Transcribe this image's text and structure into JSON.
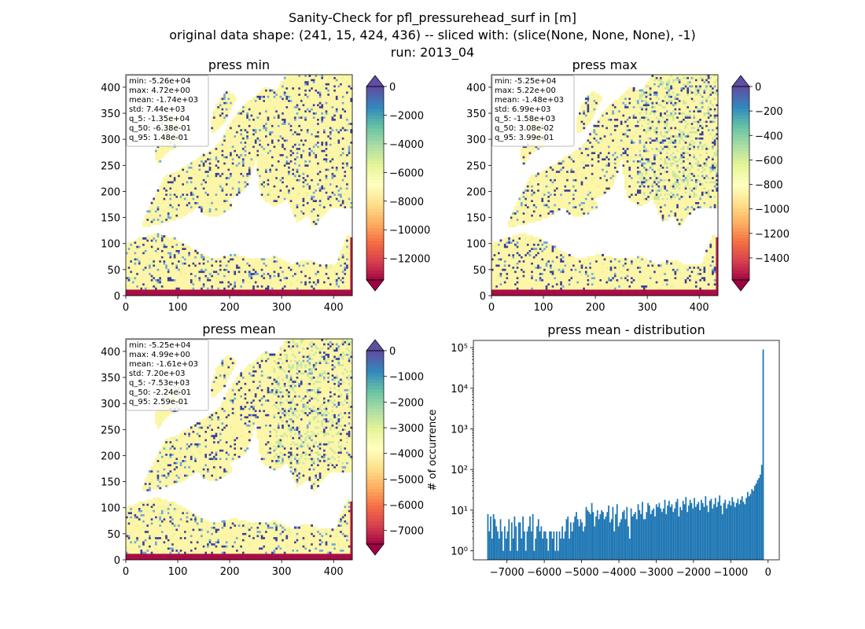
{
  "figure": {
    "title_lines": [
      "Sanity-Check for pfl_pressurehead_surf in [m]",
      "original data shape: (241, 15, 424, 436) -- sliced with: (slice(None, None, None), -1)",
      "run: 2013_04"
    ]
  },
  "colors": {
    "cmap": [
      "#9e0142",
      "#d53e4f",
      "#f46d43",
      "#fdae61",
      "#fee08b",
      "#ffffbf",
      "#e6f598",
      "#abdda4",
      "#66c2a5",
      "#3288bd",
      "#5e4fa2"
    ],
    "over": "#5e4fa2",
    "under": "#9e0142",
    "hist_bar": "#1f77b4",
    "stats_box_edge": "#bbbbbb"
  },
  "chart_data": [
    {
      "type": "heatmap",
      "title": "press min",
      "xlim": [
        0,
        436
      ],
      "ylim": [
        0,
        424
      ],
      "x_ticks": [
        0,
        100,
        200,
        300,
        400
      ],
      "y_ticks": [
        0,
        50,
        100,
        150,
        200,
        250,
        300,
        350,
        400
      ],
      "stats": [
        "min: -5.26e+04",
        "max: 4.72e+00",
        "mean: -1.74e+03",
        "std: 7.44e+03",
        "q_5: -1.35e+04",
        "q_50: -6.38e-01",
        "q_95: 1.48e-01"
      ],
      "colorbar": {
        "vmin": -13500,
        "vmax": 0,
        "extend": "both",
        "ticks": [
          0,
          -2000,
          -4000,
          -6000,
          -8000,
          -10000,
          -12000
        ],
        "tick_labels": [
          "0",
          "−2000",
          "−4000",
          "−6000",
          "−8000",
          "−10000",
          "−12000"
        ]
      }
    },
    {
      "type": "heatmap",
      "title": "press max",
      "xlim": [
        0,
        436
      ],
      "ylim": [
        0,
        424
      ],
      "x_ticks": [
        0,
        100,
        200,
        300,
        400
      ],
      "y_ticks": [
        0,
        50,
        100,
        150,
        200,
        250,
        300,
        350,
        400
      ],
      "stats": [
        "min: -5.25e+04",
        "max: 5.22e+00",
        "mean: -1.48e+03",
        "std: 6.99e+03",
        "q_5: -1.58e+03",
        "q_50: 3.08e-02",
        "q_95: 3.99e-01"
      ],
      "colorbar": {
        "vmin": -1580,
        "vmax": 0,
        "extend": "both",
        "ticks": [
          0,
          -200,
          -400,
          -600,
          -800,
          -1000,
          -1200,
          -1400
        ],
        "tick_labels": [
          "0",
          "−200",
          "−400",
          "−600",
          "−800",
          "−1000",
          "−1200",
          "−1400"
        ]
      }
    },
    {
      "type": "heatmap",
      "title": "press mean",
      "xlim": [
        0,
        436
      ],
      "ylim": [
        0,
        424
      ],
      "x_ticks": [
        0,
        100,
        200,
        300,
        400
      ],
      "y_ticks": [
        0,
        50,
        100,
        150,
        200,
        250,
        300,
        350,
        400
      ],
      "stats": [
        "min: -5.25e+04",
        "max: 4.99e+00",
        "mean: -1.61e+03",
        "std: 7.20e+03",
        "q_5: -7.53e+03",
        "q_50: -2.24e-01",
        "q_95: 2.59e-01"
      ],
      "colorbar": {
        "vmin": -7530,
        "vmax": 0,
        "extend": "both",
        "ticks": [
          0,
          -1000,
          -2000,
          -3000,
          -4000,
          -5000,
          -6000,
          -7000
        ],
        "tick_labels": [
          "0",
          "−1000",
          "−2000",
          "−3000",
          "−4000",
          "−5000",
          "−6000",
          "−7000"
        ]
      }
    },
    {
      "type": "bar",
      "title": "press mean - distribution",
      "ylabel": "# of occurrence",
      "yscale": "log",
      "xlim": [
        -7900,
        300
      ],
      "ylim": [
        0.6,
        150000
      ],
      "x_ticks": [
        -7000,
        -6000,
        -5000,
        -4000,
        -3000,
        -2000,
        -1000,
        0
      ],
      "x_tick_labels": [
        "−7000",
        "−6000",
        "−5000",
        "−4000",
        "−3000",
        "−2000",
        "−1000",
        "0"
      ],
      "y_ticks": [
        1,
        10,
        100,
        1000,
        10000,
        100000
      ],
      "y_tick_labels": [
        "10⁰",
        "10¹",
        "10²",
        "10³",
        "10⁴",
        "10⁵"
      ],
      "bin_start": -7530,
      "bin_width": 37.65,
      "counts": [
        8,
        3,
        7,
        2,
        8,
        6,
        4,
        3,
        2,
        6,
        3,
        1,
        4,
        2,
        3,
        6,
        1,
        5,
        2,
        7,
        4,
        1,
        5,
        5,
        2,
        7,
        3,
        1,
        3,
        4,
        7,
        3,
        8,
        1,
        2,
        4,
        6,
        3,
        4,
        2,
        3,
        3,
        2,
        1,
        3,
        3,
        2,
        3,
        1,
        3,
        1,
        3,
        2,
        4,
        2,
        3,
        6,
        7,
        2,
        5,
        3,
        5,
        7,
        9,
        6,
        4,
        6,
        5,
        3,
        4,
        12,
        10,
        9,
        8,
        15,
        9,
        4,
        7,
        10,
        6,
        8,
        10,
        9,
        6,
        7,
        9,
        13,
        5,
        6,
        12,
        3,
        8,
        14,
        4,
        5,
        6,
        9,
        10,
        6,
        12,
        4,
        2,
        11,
        7,
        8,
        9,
        6,
        14,
        10,
        8,
        16,
        6,
        6,
        9,
        15,
        13,
        8,
        10,
        11,
        7,
        14,
        12,
        15,
        11,
        9,
        11,
        18,
        8,
        13,
        17,
        12,
        14,
        9,
        11,
        16,
        19,
        7,
        12,
        10,
        17,
        14,
        21,
        9,
        13,
        18,
        15,
        11,
        20,
        12,
        14,
        16,
        10,
        18,
        15,
        12,
        22,
        13,
        9,
        17,
        19,
        11,
        14,
        20,
        12,
        16,
        23,
        13,
        8,
        15,
        18,
        11,
        14,
        17,
        13,
        21,
        16,
        12,
        15,
        19,
        14,
        18,
        22,
        16,
        14,
        20,
        28,
        22,
        25,
        33,
        30,
        40,
        45,
        55,
        62,
        75,
        130,
        90000
      ]
    }
  ]
}
